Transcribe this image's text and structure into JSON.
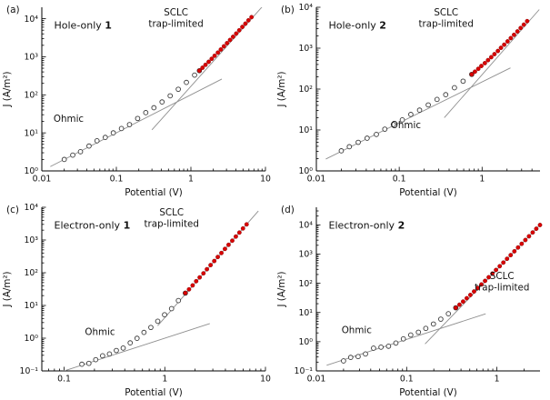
{
  "colors": {
    "background": "#ffffff",
    "red_marker": "#d90000",
    "red_marker_edge": "#7a0000",
    "open_marker_edge": "#3a3a3a",
    "fit_line": "#8f8f8f",
    "axis": "#000000",
    "text": "#111111"
  },
  "chart_data": [
    {
      "type": "scatter",
      "tag": "(a)",
      "device": "Hole-only",
      "device_number": "1",
      "xlabel": "Potential (V)",
      "ylabel": "J (A/m²)",
      "xscale": "log",
      "yscale": "log",
      "grid": false,
      "legend": "none",
      "xlim": [
        0.01,
        10
      ],
      "ylim": [
        1,
        20000
      ],
      "xticks": {
        "values": [
          0.01,
          0.1,
          1,
          10
        ],
        "labels": [
          "0.01",
          "0.1",
          "1",
          "10"
        ]
      },
      "yticks": {
        "values": [
          1,
          10,
          100,
          1000,
          10000
        ],
        "labels": [
          "10⁰",
          "10¹",
          "10²",
          "10³",
          "10⁴"
        ]
      },
      "series": [
        {
          "name": "measured current density",
          "marker": "open-circle",
          "x": [
            0.02,
            0.026,
            0.033,
            0.043,
            0.055,
            0.071,
            0.091,
            0.117,
            0.15,
            0.193,
            0.248,
            0.319,
            0.41,
            0.527,
            0.677,
            0.87,
            1.12,
            1.3
          ],
          "y": [
            2.0,
            2.6,
            3.2,
            4.5,
            6.2,
            7.6,
            10.0,
            13.0,
            16.5,
            23.9,
            34.0,
            45.7,
            64.9,
            94.0,
            140,
            212,
            330,
            430
          ]
        },
        {
          "name": "trap-limited SCLC region",
          "marker": "red-circle",
          "x": [
            1.3,
            1.43,
            1.57,
            1.73,
            1.9,
            2.08,
            2.3,
            2.52,
            2.77,
            3.05,
            3.35,
            3.68,
            4.05,
            4.45,
            4.9,
            5.38,
            5.91,
            6.5
          ],
          "y": [
            433,
            515,
            615,
            737,
            885,
            1063,
            1287,
            1553,
            1880,
            2277,
            2762,
            3353,
            4078,
            4974,
            6088,
            7425,
            9064,
            11000
          ]
        }
      ],
      "fit_lines": [
        {
          "name": "ohmic-fit-line",
          "x": [
            0.013,
            2.6
          ],
          "y": [
            1.3,
            260
          ]
        },
        {
          "name": "sclc-fit-line",
          "x": [
            0.3,
            9.5
          ],
          "y": [
            12,
            23000
          ]
        }
      ],
      "annotations": [
        {
          "lines": [
            "SCLC",
            "trap-limited"
          ],
          "fx": 0.6,
          "fy": 0.05
        },
        {
          "lines": [
            "Ohmic"
          ],
          "fx": 0.12,
          "fy": 0.7
        }
      ]
    },
    {
      "type": "scatter",
      "tag": "(b)",
      "device": "Hole-only",
      "device_number": "2",
      "xlabel": "Potential (V)",
      "ylabel": "J (A/m²)",
      "xscale": "log",
      "yscale": "log",
      "grid": false,
      "legend": "none",
      "xlim": [
        0.01,
        5
      ],
      "ylim": [
        1,
        10000
      ],
      "xticks": {
        "values": [
          0.01,
          0.1,
          1
        ],
        "labels": [
          "0.01",
          "0.1",
          "1"
        ]
      },
      "yticks": {
        "values": [
          1,
          10,
          100,
          1000,
          10000
        ],
        "labels": [
          "10⁰",
          "10¹",
          "10²",
          "10³",
          "10⁴"
        ]
      },
      "series": [
        {
          "name": "measured current density",
          "marker": "open-circle",
          "x": [
            0.02,
            0.025,
            0.032,
            0.041,
            0.053,
            0.067,
            0.085,
            0.109,
            0.138,
            0.176,
            0.224,
            0.286,
            0.364,
            0.464,
            0.59,
            0.75
          ],
          "y": [
            3.1,
            3.9,
            5.0,
            6.3,
            7.8,
            10.5,
            13.6,
            17.7,
            24,
            30.6,
            41,
            56,
            73,
            108,
            156,
            229
          ]
        },
        {
          "name": "trap-limited SCLC region",
          "marker": "red-circle",
          "x": [
            0.75,
            0.82,
            0.9,
            0.98,
            1.08,
            1.18,
            1.29,
            1.41,
            1.55,
            1.69,
            1.85,
            2.03,
            2.22,
            2.43,
            2.67,
            2.92,
            3.19,
            3.5
          ],
          "y": [
            229,
            267,
            313,
            367,
            431,
            510,
            603,
            716,
            854,
            1020,
            1218,
            1467,
            1762,
            2123,
            2573,
            3111,
            3760,
            4580
          ]
        }
      ],
      "fit_lines": [
        {
          "name": "ohmic-fit-line",
          "x": [
            0.013,
            2.2
          ],
          "y": [
            1.95,
            330
          ]
        },
        {
          "name": "sclc-fit-line",
          "x": [
            0.35,
            4.9
          ],
          "y": [
            20,
            8800
          ]
        }
      ],
      "annotations": [
        {
          "lines": [
            "SCLC",
            "trap-limited"
          ],
          "fx": 0.58,
          "fy": 0.05
        },
        {
          "lines": [
            "Ohmic"
          ],
          "fx": 0.4,
          "fy": 0.74
        }
      ]
    },
    {
      "type": "scatter",
      "tag": "(c)",
      "device": "Electron-only",
      "device_number": "1",
      "xlabel": "Potential (V)",
      "ylabel": "J (A/m²)",
      "xscale": "log",
      "yscale": "log",
      "grid": false,
      "legend": "none",
      "xlim": [
        0.06,
        10
      ],
      "ylim": [
        0.1,
        10000
      ],
      "xticks": {
        "values": [
          0.1,
          1,
          10
        ],
        "labels": [
          "0.1",
          "1",
          "10"
        ]
      },
      "yticks": {
        "values": [
          0.1,
          1,
          10,
          100,
          1000,
          10000
        ],
        "labels": [
          "10⁻¹",
          "10⁰",
          "10¹",
          "10²",
          "10³",
          "10⁴"
        ]
      },
      "series": [
        {
          "name": "measured current density",
          "marker": "open-circle",
          "x": [
            0.15,
            0.176,
            0.206,
            0.241,
            0.282,
            0.33,
            0.386,
            0.453,
            0.53,
            0.621,
            0.727,
            0.851,
            0.995,
            1.167,
            1.365,
            1.6
          ],
          "y": [
            0.16,
            0.17,
            0.22,
            0.29,
            0.33,
            0.42,
            0.5,
            0.72,
            0.99,
            1.5,
            2.13,
            3.29,
            5.21,
            8.0,
            14.1,
            23.8
          ]
        },
        {
          "name": "trap-limited SCLC region",
          "marker": "red-circle",
          "x": [
            1.6,
            1.74,
            1.89,
            2.05,
            2.22,
            2.42,
            2.62,
            2.85,
            3.1,
            3.36,
            3.65,
            3.96,
            4.3,
            4.68,
            5.08,
            5.51,
            5.98,
            6.5
          ],
          "y": [
            24,
            31,
            41,
            55,
            72,
            96,
            128,
            171,
            228,
            303,
            401,
            535,
            714,
            953,
            1272,
            1688,
            2255,
            3000
          ]
        }
      ],
      "fit_lines": [
        {
          "name": "ohmic-fit-line",
          "x": [
            0.08,
            2.8
          ],
          "y": [
            0.08,
            2.8
          ]
        },
        {
          "name": "sclc-fit-line",
          "x": [
            0.85,
            8.5
          ],
          "y": [
            2.4,
            7700
          ]
        }
      ],
      "annotations": [
        {
          "lines": [
            "SCLC",
            "trap-limited"
          ],
          "fx": 0.58,
          "fy": 0.05
        },
        {
          "lines": [
            "Ohmic"
          ],
          "fx": 0.26,
          "fy": 0.78
        }
      ]
    },
    {
      "type": "scatter",
      "tag": "(d)",
      "device": "Electron-only",
      "device_number": "2",
      "xlabel": "Potential (V)",
      "ylabel": "J (A/m²)",
      "xscale": "log",
      "yscale": "log",
      "grid": false,
      "legend": "none",
      "xlim": [
        0.01,
        3
      ],
      "ylim": [
        0.1,
        40000
      ],
      "xticks": {
        "values": [
          0.01,
          0.1,
          1
        ],
        "labels": [
          "0.01",
          "0.1",
          "1"
        ]
      },
      "yticks": {
        "values": [
          0.1,
          1,
          10,
          100,
          1000,
          10000
        ],
        "labels": [
          "10⁻¹",
          "10⁰",
          "10¹",
          "10²",
          "10³",
          "10⁴"
        ]
      },
      "series": [
        {
          "name": "measured current density",
          "marker": "open-circle",
          "x": [
            0.02,
            0.024,
            0.029,
            0.035,
            0.043,
            0.052,
            0.063,
            0.076,
            0.092,
            0.111,
            0.135,
            0.163,
            0.198,
            0.239,
            0.29,
            0.35
          ],
          "y": [
            0.22,
            0.29,
            0.31,
            0.38,
            0.6,
            0.65,
            0.7,
            0.9,
            1.25,
            1.7,
            2.11,
            2.86,
            4.03,
            5.92,
            9.08,
            14.5
          ]
        },
        {
          "name": "trap-limited SCLC region",
          "marker": "red-circle",
          "x": [
            0.35,
            0.385,
            0.422,
            0.463,
            0.508,
            0.558,
            0.613,
            0.673,
            0.739,
            0.811,
            0.891,
            0.977,
            1.074,
            1.178,
            1.294,
            1.42,
            1.56,
            1.713,
            1.88,
            2.065,
            2.265,
            2.489,
            2.729,
            3.0
          ],
          "y": [
            14.5,
            18.5,
            23.7,
            30.8,
            39.9,
            52.4,
            68.8,
            91.3,
            121,
            161,
            215,
            286,
            384,
            512,
            689,
            921,
            1244,
            1677,
            2246,
            3031,
            4063,
            5488,
            7361,
            9900
          ]
        }
      ],
      "fit_lines": [
        {
          "name": "ohmic-fit-line",
          "x": [
            0.013,
            0.75
          ],
          "y": [
            0.156,
            9.0
          ]
        },
        {
          "name": "sclc-fit-line",
          "x": [
            0.16,
            3.3
          ],
          "y": [
            0.84,
            13500
          ]
        }
      ],
      "annotations": [
        {
          "lines": [
            "SCLC",
            "trap-limited"
          ],
          "fx": 0.83,
          "fy": 0.44
        },
        {
          "lines": [
            "Ohmic"
          ],
          "fx": 0.18,
          "fy": 0.77
        }
      ]
    }
  ]
}
